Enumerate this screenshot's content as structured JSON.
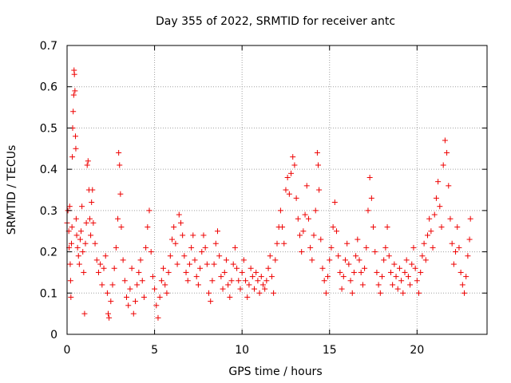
{
  "chart_data": {
    "type": "scatter",
    "title": "Day 355 of 2022, SRMTID for receiver antc",
    "xlabel": "GPS time / hours",
    "ylabel": "SRMTID / TECUs",
    "xlim": [
      0,
      24
    ],
    "ylim": [
      0,
      0.7
    ],
    "xticks": [
      0,
      5,
      10,
      15,
      20
    ],
    "yticks": [
      0,
      0.1,
      0.2,
      0.3,
      0.4,
      0.5,
      0.6,
      0.7
    ],
    "grid": true,
    "marker": "+",
    "color": "#ee0000",
    "series": [
      {
        "name": "SRMTID",
        "points": [
          [
            0.0,
            0.27
          ],
          [
            0.05,
            0.3
          ],
          [
            0.1,
            0.25
          ],
          [
            0.12,
            0.21
          ],
          [
            0.15,
            0.31
          ],
          [
            0.18,
            0.17
          ],
          [
            0.2,
            0.13
          ],
          [
            0.22,
            0.09
          ],
          [
            0.25,
            0.22
          ],
          [
            0.28,
            0.26
          ],
          [
            0.3,
            0.43
          ],
          [
            0.32,
            0.5
          ],
          [
            0.35,
            0.54
          ],
          [
            0.38,
            0.58
          ],
          [
            0.4,
            0.64
          ],
          [
            0.42,
            0.63
          ],
          [
            0.45,
            0.59
          ],
          [
            0.48,
            0.48
          ],
          [
            0.5,
            0.45
          ],
          [
            0.52,
            0.28
          ],
          [
            0.55,
            0.24
          ],
          [
            0.6,
            0.21
          ],
          [
            0.65,
            0.19
          ],
          [
            0.7,
            0.17
          ],
          [
            0.75,
            0.23
          ],
          [
            0.8,
            0.25
          ],
          [
            0.85,
            0.31
          ],
          [
            0.9,
            0.2
          ],
          [
            0.95,
            0.15
          ],
          [
            1.0,
            0.05
          ],
          [
            1.05,
            0.22
          ],
          [
            1.1,
            0.27
          ],
          [
            1.15,
            0.41
          ],
          [
            1.2,
            0.42
          ],
          [
            1.25,
            0.35
          ],
          [
            1.3,
            0.28
          ],
          [
            1.35,
            0.24
          ],
          [
            1.4,
            0.32
          ],
          [
            1.45,
            0.35
          ],
          [
            1.5,
            0.27
          ],
          [
            1.6,
            0.22
          ],
          [
            1.7,
            0.18
          ],
          [
            1.8,
            0.15
          ],
          [
            1.9,
            0.17
          ],
          [
            2.0,
            0.12
          ],
          [
            2.1,
            0.16
          ],
          [
            2.2,
            0.19
          ],
          [
            2.3,
            0.1
          ],
          [
            2.35,
            0.05
          ],
          [
            2.4,
            0.04
          ],
          [
            2.5,
            0.08
          ],
          [
            2.6,
            0.12
          ],
          [
            2.7,
            0.16
          ],
          [
            2.8,
            0.21
          ],
          [
            2.9,
            0.28
          ],
          [
            2.95,
            0.44
          ],
          [
            3.0,
            0.41
          ],
          [
            3.05,
            0.34
          ],
          [
            3.1,
            0.26
          ],
          [
            3.2,
            0.18
          ],
          [
            3.3,
            0.13
          ],
          [
            3.4,
            0.09
          ],
          [
            3.5,
            0.07
          ],
          [
            3.6,
            0.11
          ],
          [
            3.7,
            0.16
          ],
          [
            3.8,
            0.05
          ],
          [
            3.9,
            0.08
          ],
          [
            4.0,
            0.12
          ],
          [
            4.1,
            0.15
          ],
          [
            4.2,
            0.18
          ],
          [
            4.3,
            0.13
          ],
          [
            4.4,
            0.09
          ],
          [
            4.5,
            0.21
          ],
          [
            4.6,
            0.26
          ],
          [
            4.7,
            0.3
          ],
          [
            4.8,
            0.2
          ],
          [
            4.9,
            0.14
          ],
          [
            5.0,
            0.11
          ],
          [
            5.1,
            0.07
          ],
          [
            5.2,
            0.04
          ],
          [
            5.3,
            0.09
          ],
          [
            5.4,
            0.13
          ],
          [
            5.5,
            0.16
          ],
          [
            5.6,
            0.12
          ],
          [
            5.7,
            0.1
          ],
          [
            5.8,
            0.15
          ],
          [
            5.9,
            0.19
          ],
          [
            6.0,
            0.23
          ],
          [
            6.1,
            0.26
          ],
          [
            6.2,
            0.22
          ],
          [
            6.3,
            0.17
          ],
          [
            6.4,
            0.29
          ],
          [
            6.5,
            0.27
          ],
          [
            6.6,
            0.24
          ],
          [
            6.7,
            0.19
          ],
          [
            6.8,
            0.15
          ],
          [
            6.9,
            0.13
          ],
          [
            7.0,
            0.17
          ],
          [
            7.1,
            0.21
          ],
          [
            7.2,
            0.24
          ],
          [
            7.3,
            0.18
          ],
          [
            7.4,
            0.14
          ],
          [
            7.5,
            0.12
          ],
          [
            7.6,
            0.16
          ],
          [
            7.7,
            0.2
          ],
          [
            7.8,
            0.24
          ],
          [
            7.9,
            0.21
          ],
          [
            8.0,
            0.17
          ],
          [
            8.1,
            0.1
          ],
          [
            8.2,
            0.08
          ],
          [
            8.3,
            0.13
          ],
          [
            8.4,
            0.17
          ],
          [
            8.5,
            0.22
          ],
          [
            8.6,
            0.25
          ],
          [
            8.7,
            0.19
          ],
          [
            8.8,
            0.14
          ],
          [
            8.9,
            0.11
          ],
          [
            9.0,
            0.15
          ],
          [
            9.1,
            0.18
          ],
          [
            9.2,
            0.12
          ],
          [
            9.3,
            0.09
          ],
          [
            9.4,
            0.13
          ],
          [
            9.5,
            0.17
          ],
          [
            9.6,
            0.21
          ],
          [
            9.7,
            0.16
          ],
          [
            9.8,
            0.13
          ],
          [
            9.9,
            0.11
          ],
          [
            10.0,
            0.15
          ],
          [
            10.1,
            0.18
          ],
          [
            10.2,
            0.13
          ],
          [
            10.3,
            0.09
          ],
          [
            10.4,
            0.12
          ],
          [
            10.5,
            0.16
          ],
          [
            10.6,
            0.14
          ],
          [
            10.7,
            0.11
          ],
          [
            10.8,
            0.15
          ],
          [
            10.9,
            0.13
          ],
          [
            11.0,
            0.1
          ],
          [
            11.1,
            0.14
          ],
          [
            11.2,
            0.12
          ],
          [
            11.3,
            0.11
          ],
          [
            11.4,
            0.13
          ],
          [
            11.5,
            0.16
          ],
          [
            11.6,
            0.19
          ],
          [
            11.7,
            0.14
          ],
          [
            11.8,
            0.1
          ],
          [
            11.9,
            0.18
          ],
          [
            12.0,
            0.22
          ],
          [
            12.1,
            0.26
          ],
          [
            12.2,
            0.3
          ],
          [
            12.3,
            0.26
          ],
          [
            12.4,
            0.22
          ],
          [
            12.5,
            0.35
          ],
          [
            12.6,
            0.38
          ],
          [
            12.7,
            0.34
          ],
          [
            12.8,
            0.39
          ],
          [
            12.9,
            0.43
          ],
          [
            13.0,
            0.41
          ],
          [
            13.1,
            0.33
          ],
          [
            13.2,
            0.28
          ],
          [
            13.3,
            0.24
          ],
          [
            13.4,
            0.2
          ],
          [
            13.5,
            0.25
          ],
          [
            13.6,
            0.29
          ],
          [
            13.7,
            0.36
          ],
          [
            13.8,
            0.28
          ],
          [
            13.9,
            0.21
          ],
          [
            14.0,
            0.18
          ],
          [
            14.1,
            0.24
          ],
          [
            14.2,
            0.3
          ],
          [
            14.3,
            0.44
          ],
          [
            14.35,
            0.41
          ],
          [
            14.4,
            0.35
          ],
          [
            14.5,
            0.23
          ],
          [
            14.6,
            0.16
          ],
          [
            14.7,
            0.13
          ],
          [
            14.8,
            0.1
          ],
          [
            14.9,
            0.14
          ],
          [
            15.0,
            0.18
          ],
          [
            15.1,
            0.21
          ],
          [
            15.2,
            0.26
          ],
          [
            15.3,
            0.32
          ],
          [
            15.4,
            0.25
          ],
          [
            15.5,
            0.19
          ],
          [
            15.6,
            0.15
          ],
          [
            15.7,
            0.11
          ],
          [
            15.8,
            0.14
          ],
          [
            15.9,
            0.18
          ],
          [
            16.0,
            0.22
          ],
          [
            16.1,
            0.17
          ],
          [
            16.2,
            0.13
          ],
          [
            16.3,
            0.1
          ],
          [
            16.4,
            0.15
          ],
          [
            16.5,
            0.19
          ],
          [
            16.6,
            0.23
          ],
          [
            16.7,
            0.18
          ],
          [
            16.8,
            0.15
          ],
          [
            16.9,
            0.12
          ],
          [
            17.0,
            0.16
          ],
          [
            17.1,
            0.21
          ],
          [
            17.2,
            0.3
          ],
          [
            17.3,
            0.38
          ],
          [
            17.4,
            0.33
          ],
          [
            17.5,
            0.26
          ],
          [
            17.6,
            0.2
          ],
          [
            17.7,
            0.15
          ],
          [
            17.8,
            0.12
          ],
          [
            17.9,
            0.1
          ],
          [
            18.0,
            0.14
          ],
          [
            18.1,
            0.18
          ],
          [
            18.2,
            0.21
          ],
          [
            18.3,
            0.26
          ],
          [
            18.4,
            0.19
          ],
          [
            18.5,
            0.15
          ],
          [
            18.6,
            0.12
          ],
          [
            18.7,
            0.17
          ],
          [
            18.8,
            0.14
          ],
          [
            18.9,
            0.11
          ],
          [
            19.0,
            0.16
          ],
          [
            19.1,
            0.13
          ],
          [
            19.2,
            0.1
          ],
          [
            19.3,
            0.15
          ],
          [
            19.4,
            0.18
          ],
          [
            19.5,
            0.14
          ],
          [
            19.6,
            0.12
          ],
          [
            19.7,
            0.17
          ],
          [
            19.8,
            0.21
          ],
          [
            19.9,
            0.16
          ],
          [
            20.0,
            0.13
          ],
          [
            20.1,
            0.1
          ],
          [
            20.2,
            0.15
          ],
          [
            20.3,
            0.19
          ],
          [
            20.4,
            0.22
          ],
          [
            20.5,
            0.18
          ],
          [
            20.6,
            0.24
          ],
          [
            20.7,
            0.28
          ],
          [
            20.8,
            0.25
          ],
          [
            20.9,
            0.21
          ],
          [
            21.0,
            0.29
          ],
          [
            21.1,
            0.33
          ],
          [
            21.2,
            0.37
          ],
          [
            21.3,
            0.31
          ],
          [
            21.4,
            0.26
          ],
          [
            21.5,
            0.41
          ],
          [
            21.6,
            0.47
          ],
          [
            21.7,
            0.44
          ],
          [
            21.8,
            0.36
          ],
          [
            21.9,
            0.28
          ],
          [
            22.0,
            0.22
          ],
          [
            22.1,
            0.17
          ],
          [
            22.2,
            0.2
          ],
          [
            22.3,
            0.26
          ],
          [
            22.4,
            0.21
          ],
          [
            22.5,
            0.15
          ],
          [
            22.6,
            0.12
          ],
          [
            22.7,
            0.1
          ],
          [
            22.8,
            0.14
          ],
          [
            22.9,
            0.19
          ],
          [
            23.0,
            0.23
          ],
          [
            23.05,
            0.28
          ]
        ]
      }
    ]
  }
}
